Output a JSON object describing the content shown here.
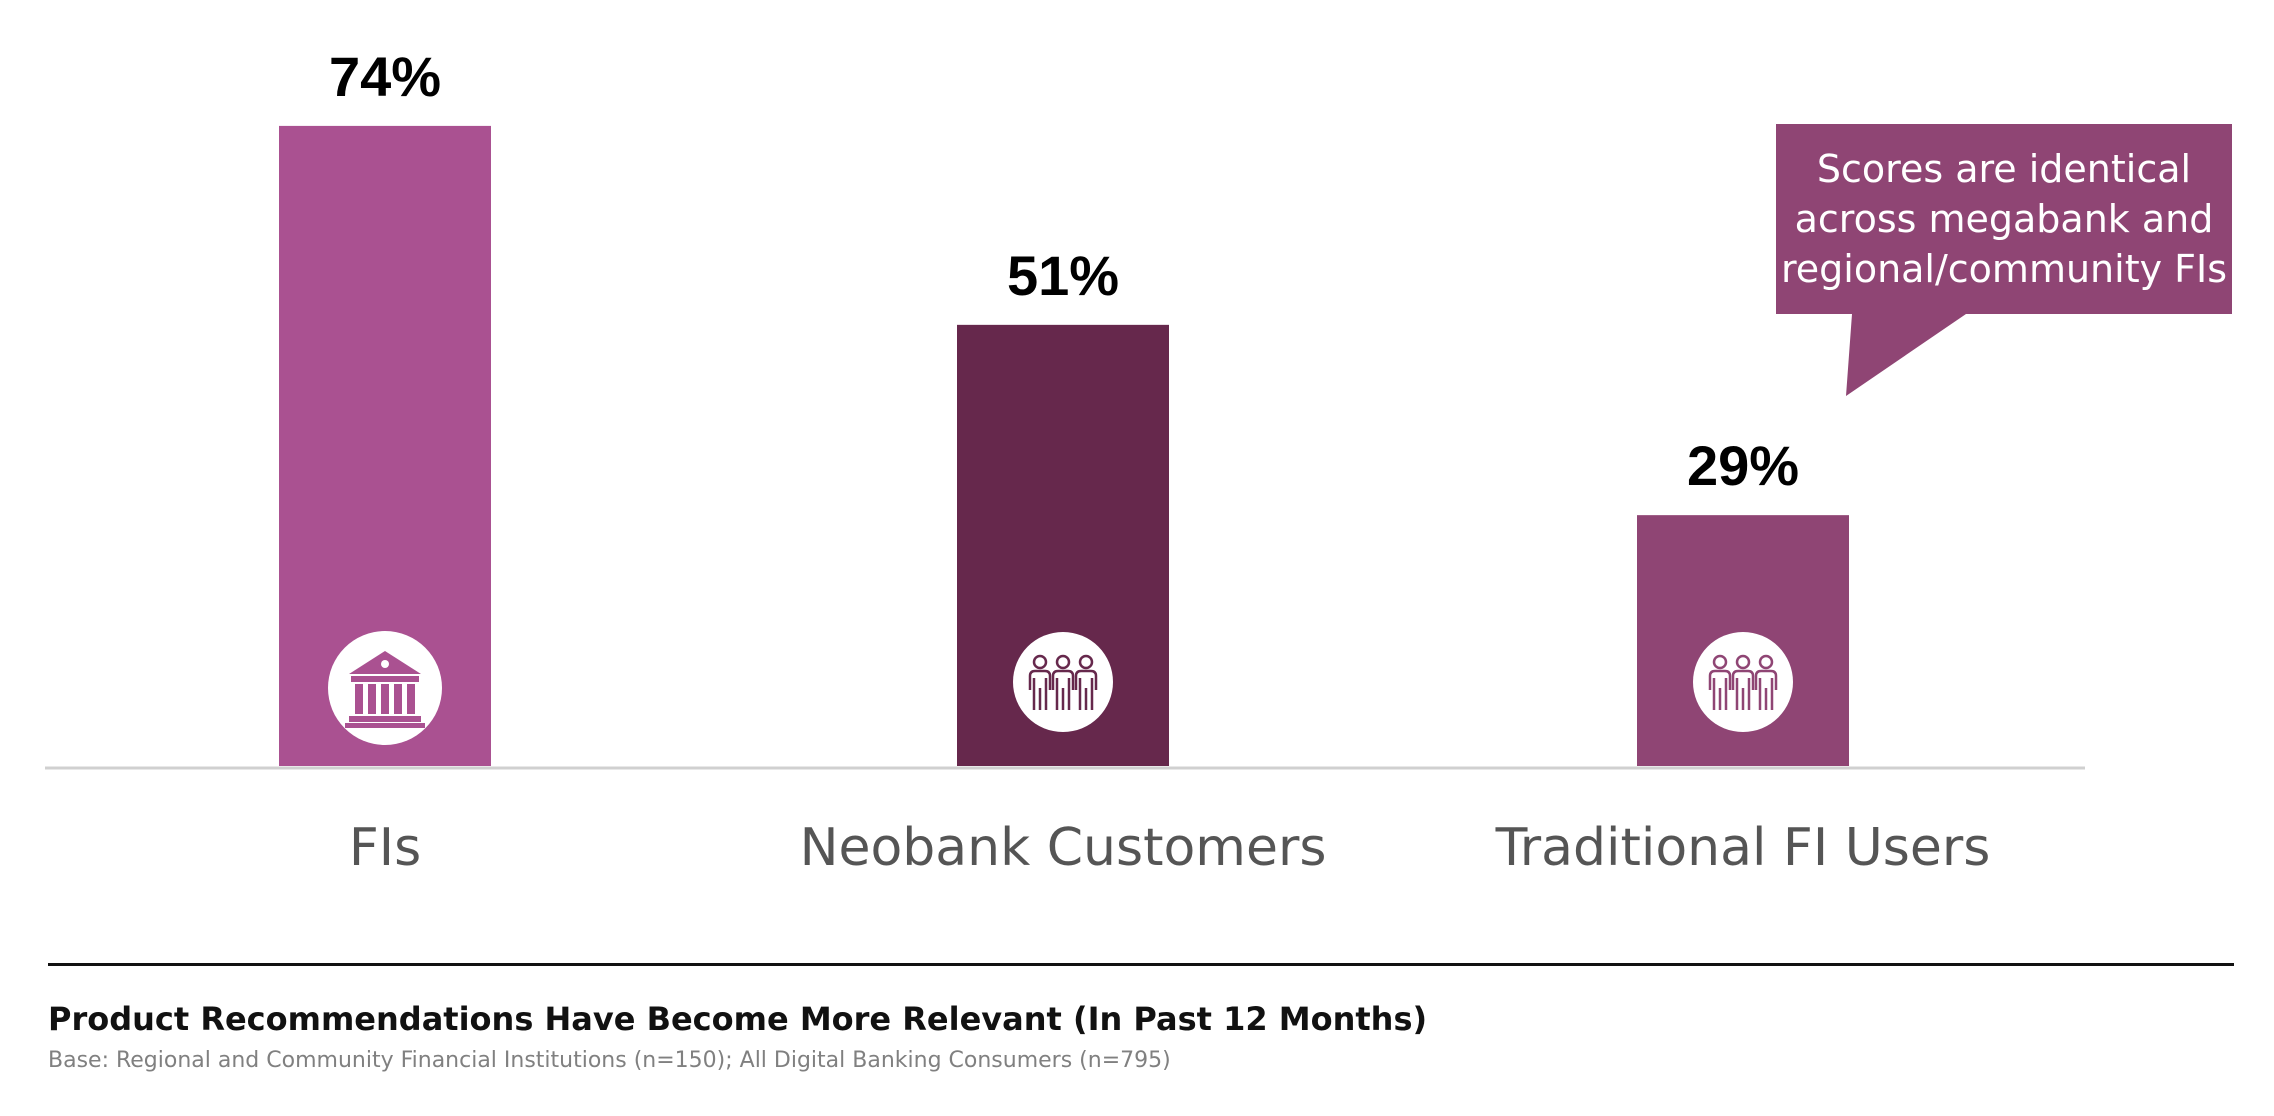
{
  "chart_data": {
    "type": "bar",
    "title": "Product Recommendations Have Become More Relevant (In Past 12 Months)",
    "subtitle": "Base: Regional and Community Financial Institutions (n=150); All Digital Banking Consumers (n=795)",
    "categories": [
      "FIs",
      "Neobank Customers",
      "Traditional FI Users"
    ],
    "values": [
      74,
      51,
      29
    ],
    "value_labels": [
      "74%",
      "51%",
      "29%"
    ],
    "icons": [
      "bank-icon",
      "people-icon",
      "people-icon"
    ],
    "ylim": [
      0,
      100
    ],
    "grid": false,
    "annotation": {
      "lines": [
        "Scores are identical",
        "across megabank and",
        "regional/community FIs"
      ],
      "target_category": "Traditional FI Users"
    }
  },
  "colors": {
    "bars": [
      "#aa5191",
      "#66284c",
      "#8f4574"
    ],
    "callout": "#8f4574",
    "value_label": "#000000",
    "category_label": "#555555",
    "baseline": "#d0d0d0"
  }
}
